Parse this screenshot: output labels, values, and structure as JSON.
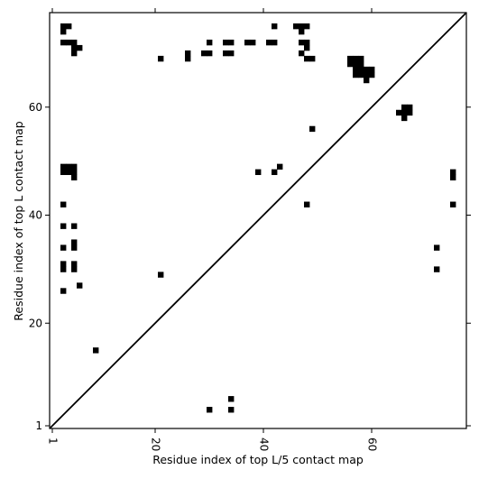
{
  "chart_data": {
    "type": "heatmap",
    "title": "",
    "xlabel": "Residue index of top L/5 contact map",
    "ylabel": "Residue index of top L contact map",
    "xlim": [
      0.5,
      77.5
    ],
    "ylim": [
      0.5,
      77.5
    ],
    "x_ticks": [
      1,
      20,
      40,
      60
    ],
    "y_ticks": [
      1,
      20,
      40,
      60
    ],
    "grid": false,
    "diagonal": true,
    "cell_color": "#000000",
    "cells": [
      [
        3,
        75
      ],
      [
        4,
        75
      ],
      [
        3,
        74
      ],
      [
        3,
        72
      ],
      [
        4,
        72
      ],
      [
        5,
        72
      ],
      [
        5,
        71
      ],
      [
        6,
        71
      ],
      [
        5,
        70
      ],
      [
        21,
        69
      ],
      [
        26,
        70
      ],
      [
        26,
        69
      ],
      [
        29,
        70
      ],
      [
        30,
        70
      ],
      [
        30,
        72
      ],
      [
        33,
        72
      ],
      [
        34,
        72
      ],
      [
        33,
        70
      ],
      [
        34,
        70
      ],
      [
        37,
        72
      ],
      [
        38,
        72
      ],
      [
        41,
        72
      ],
      [
        42,
        72
      ],
      [
        42,
        75
      ],
      [
        46,
        75
      ],
      [
        47,
        75
      ],
      [
        48,
        75
      ],
      [
        47,
        74
      ],
      [
        47,
        72
      ],
      [
        48,
        72
      ],
      [
        48,
        71
      ],
      [
        47,
        70
      ],
      [
        48,
        69
      ],
      [
        49,
        69
      ],
      [
        56,
        69
      ],
      [
        57,
        69
      ],
      [
        58,
        69
      ],
      [
        56,
        68
      ],
      [
        57,
        68
      ],
      [
        58,
        68
      ],
      [
        57,
        67
      ],
      [
        58,
        67
      ],
      [
        59,
        67
      ],
      [
        60,
        67
      ],
      [
        57,
        66
      ],
      [
        58,
        66
      ],
      [
        59,
        66
      ],
      [
        60,
        66
      ],
      [
        59,
        65
      ],
      [
        66,
        60
      ],
      [
        67,
        60
      ],
      [
        65,
        59
      ],
      [
        66,
        59
      ],
      [
        67,
        59
      ],
      [
        66,
        58
      ],
      [
        49,
        56
      ],
      [
        3,
        49
      ],
      [
        4,
        49
      ],
      [
        5,
        49
      ],
      [
        3,
        48
      ],
      [
        4,
        48
      ],
      [
        5,
        48
      ],
      [
        5,
        47
      ],
      [
        39,
        48
      ],
      [
        42,
        48
      ],
      [
        43,
        49
      ],
      [
        48,
        42
      ],
      [
        3,
        42
      ],
      [
        3,
        38
      ],
      [
        5,
        38
      ],
      [
        3,
        34
      ],
      [
        5,
        35
      ],
      [
        5,
        34
      ],
      [
        3,
        31
      ],
      [
        3,
        30
      ],
      [
        5,
        31
      ],
      [
        5,
        30
      ],
      [
        6,
        27
      ],
      [
        3,
        26
      ],
      [
        21,
        29
      ],
      [
        9,
        15
      ],
      [
        30,
        4
      ],
      [
        34,
        4
      ],
      [
        34,
        6
      ],
      [
        75,
        48
      ],
      [
        75,
        47
      ],
      [
        75,
        42
      ],
      [
        72,
        34
      ],
      [
        72,
        30
      ]
    ]
  }
}
